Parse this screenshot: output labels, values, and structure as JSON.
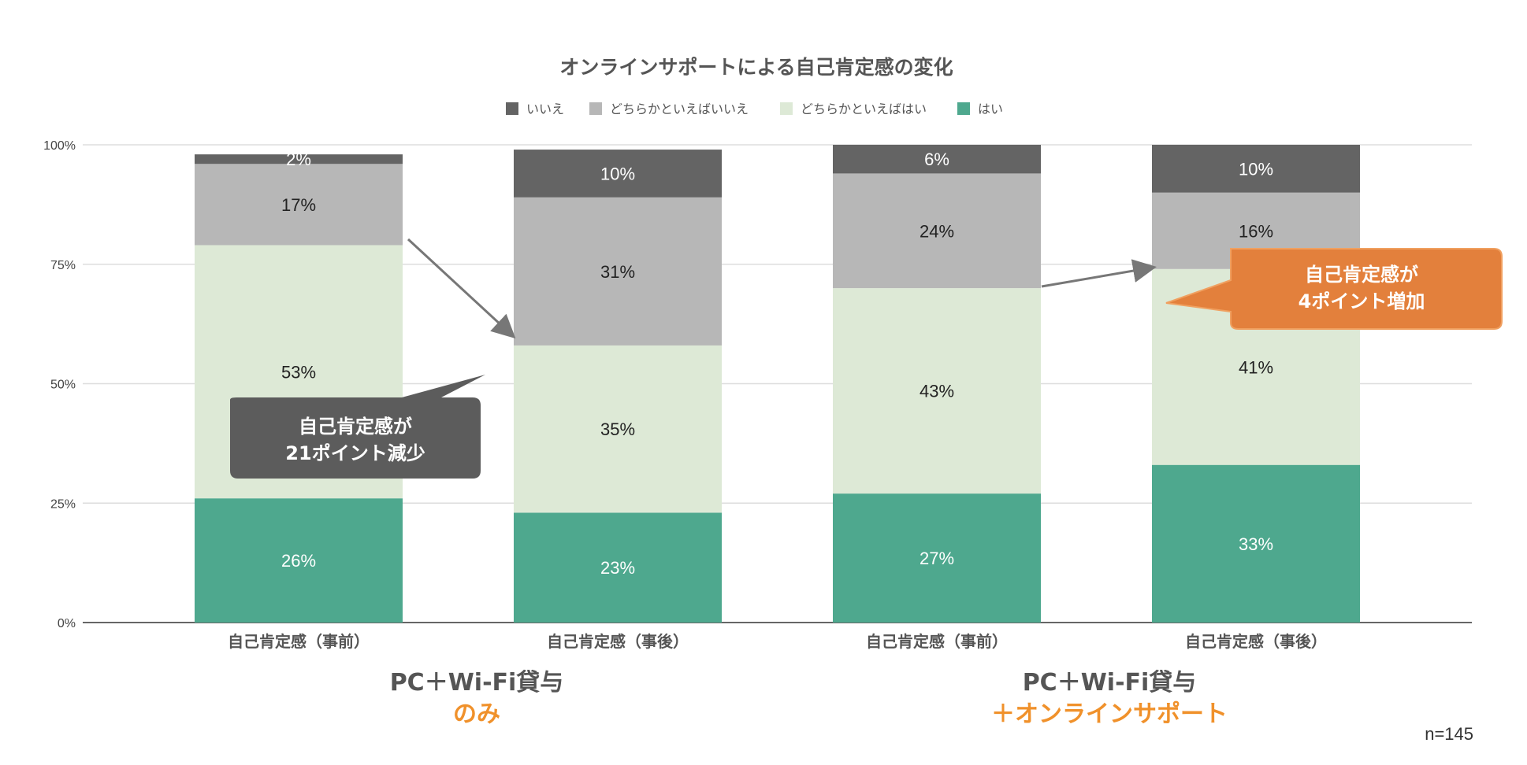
{
  "chart_data": {
    "type": "bar",
    "stacked": true,
    "title": "オンラインサポートによる自己肯定感の変化",
    "legend": {
      "position": "top",
      "entries": [
        "いいえ",
        "どちらかといえばいいえ",
        "どちらかといえばはい",
        "はい"
      ]
    },
    "categories": [
      "自己肯定感（事前）",
      "自己肯定感（事後）",
      "自己肯定感（事前）",
      "自己肯定感（事後）"
    ],
    "series": [
      {
        "name": "はい",
        "color": "#4ea88e",
        "values": [
          26,
          23,
          27,
          33
        ],
        "labels": [
          "26%",
          "23%",
          "27%",
          "33%"
        ],
        "label_color": "#ffffff"
      },
      {
        "name": "どちらかといえばはい",
        "color": "#dde9d6",
        "values": [
          53,
          35,
          43,
          41
        ],
        "labels": [
          "53%",
          "35%",
          "43%",
          "41%"
        ],
        "label_color": "#222222"
      },
      {
        "name": "どちらかといえばいいえ",
        "color": "#b7b7b7",
        "values": [
          17,
          31,
          24,
          16
        ],
        "labels": [
          "17%",
          "31%",
          "24%",
          "16%"
        ],
        "label_color": "#222222"
      },
      {
        "name": "いいえ",
        "color": "#646464",
        "values": [
          2,
          10,
          6,
          10
        ],
        "labels": [
          "2%",
          "10%",
          "6%",
          "10%"
        ],
        "label_color": "#ffffff"
      }
    ],
    "ylim": [
      0,
      100
    ],
    "yticks": [
      "0%",
      "25%",
      "50%",
      "75%",
      "100%"
    ],
    "grid": true,
    "groups": [
      {
        "line1": "PC＋Wi-Fi貸与",
        "line2": "のみ"
      },
      {
        "line1": "PC＋Wi-Fi貸与",
        "line2": "＋オンラインサポート"
      }
    ],
    "annotations": [
      {
        "text_lines": [
          "自己肯定感が",
          "21ポイント減少"
        ],
        "color": "#5c5c5c"
      },
      {
        "text_lines": [
          "自己肯定感が",
          "4ポイント増加"
        ],
        "color": "#e3803c"
      }
    ],
    "note": "n=145"
  }
}
